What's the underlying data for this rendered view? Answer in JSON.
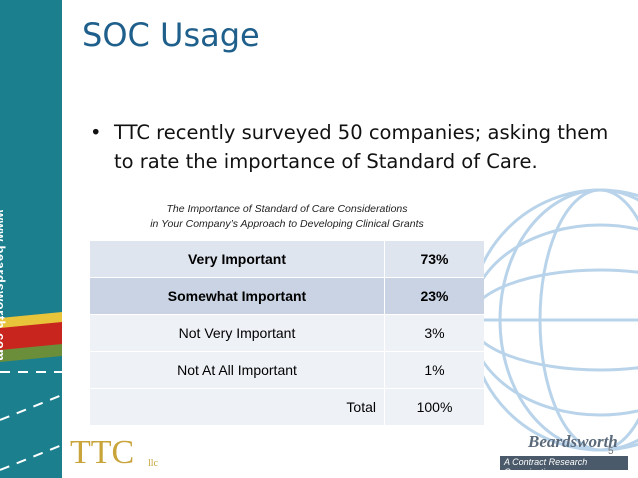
{
  "sidebar": {
    "url": "www.beardsworth.com"
  },
  "header": {
    "title": "SOC Usage"
  },
  "bullet": "TTC recently surveyed 50 companies; asking them to rate the importance of Standard of Care.",
  "table": {
    "caption": [
      "The Importance of Standard of Care Considerations",
      "in Your Company’s Approach to Developing Clinical Grants"
    ],
    "rows": [
      [
        "Very Important",
        "73%"
      ],
      [
        "Somewhat Important",
        "23%"
      ],
      [
        "Not Very Important",
        "3%"
      ],
      [
        "Not At All Important",
        "1%"
      ]
    ],
    "total": [
      "Total",
      "100%"
    ]
  },
  "footer": {
    "ttc_logo": "TTC",
    "ttc_suffix": "llc",
    "beardsworth_logo": "Beardsworth",
    "beardsworth_tagline": "A Contract Research Organization",
    "page_number": "5"
  }
}
